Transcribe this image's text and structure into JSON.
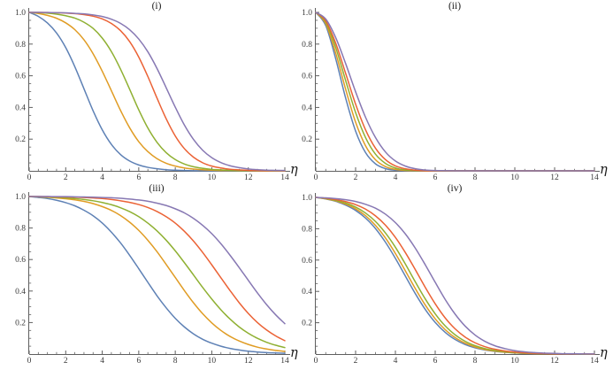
{
  "figure": {
    "background": "#ffffff",
    "axis_color": "#5f5f5f",
    "tick_label_color": "#3a3a3a"
  },
  "chart_data": [
    {
      "panel": "i",
      "type": "line",
      "title": "(i)",
      "xlabel": "η",
      "ylabel": "",
      "xlim": [
        0,
        14
      ],
      "ylim": [
        0,
        1.0
      ],
      "grid": false,
      "legend": "none",
      "x_major_ticks": [
        0,
        2,
        4,
        6,
        8,
        10,
        12,
        14
      ],
      "x_tick_labels": [
        "0",
        "2",
        "4",
        "6",
        "8",
        "10",
        "12",
        "14"
      ],
      "x_minor_step": 0.5,
      "y_major_ticks": [
        0.2,
        0.4,
        0.6,
        0.8,
        1.0
      ],
      "y_tick_labels": [
        "0.2",
        "0.4",
        "0.6",
        "0.8",
        "1.0"
      ],
      "y_minor_step": 0.05,
      "x": [
        0,
        0.5,
        1,
        1.5,
        2,
        2.5,
        3,
        3.5,
        4,
        4.5,
        5,
        5.5,
        6,
        6.5,
        7,
        7.5,
        8,
        8.5,
        9,
        9.5,
        10,
        10.5,
        11,
        11.5,
        12,
        12.5,
        13,
        13.5,
        14
      ],
      "series": [
        {
          "name": "blue",
          "color": "#5e81b5",
          "y": [
            1,
            0.975,
            0.933,
            0.87,
            0.778,
            0.657,
            0.518,
            0.379,
            0.259,
            0.167,
            0.103,
            0.062,
            0.037,
            0.022,
            0.013,
            0.007,
            0.004,
            0.002,
            0.001,
            0.001,
            0,
            0,
            0,
            0,
            0,
            0,
            0,
            0,
            0
          ]
        },
        {
          "name": "orange",
          "color": "#e09c24",
          "y": [
            1,
            0.993,
            0.981,
            0.963,
            0.934,
            0.891,
            0.827,
            0.739,
            0.629,
            0.506,
            0.382,
            0.272,
            0.184,
            0.121,
            0.077,
            0.048,
            0.03,
            0.018,
            0.011,
            0.007,
            0.004,
            0.002,
            0.002,
            0.001,
            0.001,
            0,
            0,
            0,
            0
          ]
        },
        {
          "name": "green",
          "color": "#8fb032",
          "y": [
            1,
            0.998,
            0.995,
            0.989,
            0.979,
            0.964,
            0.938,
            0.899,
            0.838,
            0.753,
            0.642,
            0.515,
            0.385,
            0.27,
            0.18,
            0.115,
            0.071,
            0.043,
            0.026,
            0.016,
            0.009,
            0.006,
            0.003,
            0.002,
            0.001,
            0.001,
            0,
            0,
            0
          ]
        },
        {
          "name": "red",
          "color": "#eb6235",
          "y": [
            1,
            1,
            0.999,
            0.998,
            0.996,
            0.992,
            0.986,
            0.976,
            0.959,
            0.93,
            0.885,
            0.816,
            0.718,
            0.595,
            0.459,
            0.329,
            0.22,
            0.14,
            0.086,
            0.051,
            0.03,
            0.018,
            0.01,
            0.006,
            0.003,
            0.002,
            0.001,
            0.001,
            0
          ]
        },
        {
          "name": "purple",
          "color": "#8778b3",
          "y": [
            1,
            1,
            0.999,
            0.998,
            0.997,
            0.994,
            0.991,
            0.984,
            0.974,
            0.957,
            0.931,
            0.891,
            0.832,
            0.751,
            0.646,
            0.525,
            0.402,
            0.289,
            0.198,
            0.13,
            0.083,
            0.052,
            0.032,
            0.02,
            0.012,
            0.007,
            0.004,
            0.003,
            0.002
          ]
        }
      ]
    },
    {
      "panel": "ii",
      "type": "line",
      "title": "(ii)",
      "xlabel": "η",
      "ylabel": "",
      "xlim": [
        0,
        14
      ],
      "ylim": [
        0,
        1.0
      ],
      "grid": false,
      "legend": "none",
      "x_major_ticks": [
        0,
        2,
        4,
        6,
        8,
        10,
        12,
        14
      ],
      "x_tick_labels": [
        "0",
        "2",
        "4",
        "6",
        "8",
        "10",
        "12",
        "14"
      ],
      "x_minor_step": 0.5,
      "y_major_ticks": [
        0.2,
        0.4,
        0.6,
        0.8,
        1.0
      ],
      "y_tick_labels": [
        "0.2",
        "0.4",
        "0.6",
        "0.8",
        "1.0"
      ],
      "y_minor_step": 0.05,
      "x": [
        0,
        0.5,
        1,
        1.5,
        2,
        2.5,
        3,
        3.5,
        4,
        4.5,
        5,
        5.5,
        6,
        6.5,
        7,
        7.5,
        8,
        8.5,
        9,
        9.5,
        10,
        10.5,
        11,
        11.5,
        12,
        12.5,
        13,
        13.5,
        14
      ],
      "series": [
        {
          "name": "blue",
          "color": "#5e81b5",
          "y": [
            1,
            0.917,
            0.708,
            0.459,
            0.251,
            0.115,
            0.044,
            0.014,
            0.004,
            0.001,
            0,
            0,
            0,
            0,
            0,
            0,
            0,
            0,
            0,
            0,
            0,
            0,
            0,
            0,
            0,
            0,
            0,
            0,
            0
          ]
        },
        {
          "name": "orange",
          "color": "#e09c24",
          "y": [
            1,
            0.929,
            0.744,
            0.515,
            0.307,
            0.158,
            0.07,
            0.027,
            0.009,
            0.003,
            0.001,
            0,
            0,
            0,
            0,
            0,
            0,
            0,
            0,
            0,
            0,
            0,
            0,
            0,
            0,
            0,
            0,
            0,
            0
          ]
        },
        {
          "name": "green",
          "color": "#8fb032",
          "y": [
            1,
            0.939,
            0.779,
            0.57,
            0.368,
            0.21,
            0.105,
            0.047,
            0.018,
            0.006,
            0.002,
            0.001,
            0,
            0,
            0,
            0,
            0,
            0,
            0,
            0,
            0,
            0,
            0,
            0,
            0,
            0,
            0,
            0,
            0
          ]
        },
        {
          "name": "red",
          "color": "#eb6235",
          "y": [
            1,
            0.947,
            0.806,
            0.615,
            0.421,
            0.259,
            0.143,
            0.071,
            0.031,
            0.013,
            0.004,
            0.001,
            0,
            0,
            0,
            0,
            0,
            0,
            0,
            0,
            0,
            0,
            0,
            0,
            0,
            0,
            0,
            0,
            0
          ]
        },
        {
          "name": "purple",
          "color": "#8778b3",
          "y": [
            1,
            0.958,
            0.841,
            0.677,
            0.499,
            0.338,
            0.21,
            0.119,
            0.062,
            0.03,
            0.013,
            0.005,
            0.002,
            0.001,
            0,
            0,
            0,
            0,
            0,
            0,
            0,
            0,
            0,
            0,
            0,
            0,
            0,
            0,
            0
          ]
        }
      ]
    },
    {
      "panel": "iii",
      "type": "line",
      "title": "(iii)",
      "xlabel": "η",
      "ylabel": "",
      "xlim": [
        0,
        14
      ],
      "ylim": [
        0,
        1.0
      ],
      "grid": false,
      "legend": "none",
      "x_major_ticks": [
        0,
        2,
        4,
        6,
        8,
        10,
        12,
        14
      ],
      "x_tick_labels": [
        "0",
        "2",
        "4",
        "6",
        "8",
        "10",
        "12",
        "14"
      ],
      "x_minor_step": 0.5,
      "y_major_ticks": [
        0.2,
        0.4,
        0.6,
        0.8,
        1.0
      ],
      "y_tick_labels": [
        "0.2",
        "0.4",
        "0.6",
        "0.8",
        "1.0"
      ],
      "y_minor_step": 0.05,
      "x": [
        0,
        0.5,
        1,
        1.5,
        2,
        2.5,
        3,
        3.5,
        4,
        4.5,
        5,
        5.5,
        6,
        6.5,
        7,
        7.5,
        8,
        8.5,
        9,
        9.5,
        10,
        10.5,
        11,
        11.5,
        12,
        12.5,
        13,
        13.5,
        14
      ],
      "series": [
        {
          "name": "blue",
          "color": "#5e81b5",
          "y": [
            1,
            0.994,
            0.987,
            0.976,
            0.961,
            0.941,
            0.913,
            0.878,
            0.832,
            0.774,
            0.706,
            0.627,
            0.542,
            0.455,
            0.37,
            0.294,
            0.227,
            0.172,
            0.128,
            0.094,
            0.069,
            0.05,
            0.036,
            0.026,
            0.018,
            0.013,
            0.009,
            0.007,
            0.005
          ]
        },
        {
          "name": "orange",
          "color": "#e09c24",
          "y": [
            1,
            0.998,
            0.995,
            0.991,
            0.986,
            0.979,
            0.969,
            0.955,
            0.936,
            0.912,
            0.879,
            0.837,
            0.785,
            0.722,
            0.65,
            0.569,
            0.486,
            0.403,
            0.325,
            0.256,
            0.198,
            0.15,
            0.112,
            0.083,
            0.061,
            0.044,
            0.032,
            0.023,
            0.017
          ]
        },
        {
          "name": "green",
          "color": "#8fb032",
          "y": [
            1,
            0.999,
            0.997,
            0.995,
            0.991,
            0.987,
            0.981,
            0.973,
            0.962,
            0.948,
            0.929,
            0.904,
            0.872,
            0.831,
            0.782,
            0.723,
            0.655,
            0.58,
            0.502,
            0.423,
            0.349,
            0.281,
            0.222,
            0.172,
            0.132,
            0.1,
            0.075,
            0.056,
            0.041
          ]
        },
        {
          "name": "red",
          "color": "#eb6235",
          "y": [
            1,
            1,
            0.999,
            0.998,
            0.997,
            0.996,
            0.994,
            0.991,
            0.987,
            0.981,
            0.973,
            0.963,
            0.949,
            0.93,
            0.905,
            0.872,
            0.831,
            0.779,
            0.717,
            0.645,
            0.566,
            0.484,
            0.403,
            0.326,
            0.258,
            0.2,
            0.153,
            0.115,
            0.085
          ]
        },
        {
          "name": "purple",
          "color": "#8778b3",
          "y": [
            1,
            1,
            1,
            0.999,
            0.999,
            0.998,
            0.997,
            0.996,
            0.994,
            0.992,
            0.989,
            0.984,
            0.978,
            0.97,
            0.958,
            0.943,
            0.922,
            0.896,
            0.861,
            0.817,
            0.764,
            0.7,
            0.627,
            0.549,
            0.468,
            0.388,
            0.314,
            0.249,
            0.193
          ]
        }
      ]
    },
    {
      "panel": "iv",
      "type": "line",
      "title": "(iv)",
      "xlabel": "η",
      "ylabel": "",
      "xlim": [
        0,
        14
      ],
      "ylim": [
        0,
        1.0
      ],
      "grid": false,
      "legend": "none",
      "x_major_ticks": [
        0,
        2,
        4,
        6,
        8,
        10,
        12,
        14
      ],
      "x_tick_labels": [
        "0",
        "2",
        "4",
        "6",
        "8",
        "10",
        "12",
        "14"
      ],
      "x_minor_step": 0.5,
      "y_major_ticks": [
        0.2,
        0.4,
        0.6,
        0.8,
        1.0
      ],
      "y_tick_labels": [
        "0.2",
        "0.4",
        "0.6",
        "0.8",
        "1.0"
      ],
      "y_minor_step": 0.05,
      "x": [
        0,
        0.5,
        1,
        1.5,
        2,
        2.5,
        3,
        3.5,
        4,
        4.5,
        5,
        5.5,
        6,
        6.5,
        7,
        7.5,
        8,
        8.5,
        9,
        9.5,
        10,
        10.5,
        11,
        11.5,
        12,
        12.5,
        13,
        13.5,
        14
      ],
      "series": [
        {
          "name": "blue",
          "color": "#5e81b5",
          "y": [
            1,
            0.99,
            0.975,
            0.951,
            0.917,
            0.868,
            0.801,
            0.714,
            0.611,
            0.498,
            0.386,
            0.285,
            0.202,
            0.139,
            0.093,
            0.061,
            0.04,
            0.026,
            0.017,
            0.011,
            0.007,
            0.004,
            0.003,
            0.002,
            0.001,
            0.001,
            0,
            0,
            0
          ]
        },
        {
          "name": "orange",
          "color": "#e09c24",
          "y": [
            1,
            0.991,
            0.978,
            0.957,
            0.927,
            0.883,
            0.821,
            0.741,
            0.642,
            0.531,
            0.418,
            0.313,
            0.225,
            0.156,
            0.105,
            0.07,
            0.046,
            0.029,
            0.019,
            0.012,
            0.008,
            0.005,
            0.003,
            0.002,
            0.001,
            0.001,
            0.001,
            0,
            0
          ]
        },
        {
          "name": "green",
          "color": "#8fb032",
          "y": [
            1,
            0.993,
            0.981,
            0.964,
            0.938,
            0.9,
            0.846,
            0.773,
            0.682,
            0.575,
            0.461,
            0.352,
            0.257,
            0.18,
            0.123,
            0.082,
            0.054,
            0.035,
            0.023,
            0.015,
            0.009,
            0.006,
            0.004,
            0.002,
            0.002,
            0.001,
            0.001,
            0,
            0
          ]
        },
        {
          "name": "red",
          "color": "#eb6235",
          "y": [
            1,
            0.995,
            0.986,
            0.973,
            0.954,
            0.925,
            0.882,
            0.823,
            0.745,
            0.648,
            0.539,
            0.426,
            0.321,
            0.231,
            0.161,
            0.109,
            0.072,
            0.047,
            0.031,
            0.02,
            0.013,
            0.008,
            0.005,
            0.003,
            0.002,
            0.001,
            0.001,
            0.001,
            0
          ]
        },
        {
          "name": "purple",
          "color": "#8778b3",
          "y": [
            1,
            0.997,
            0.992,
            0.985,
            0.974,
            0.956,
            0.931,
            0.893,
            0.839,
            0.767,
            0.676,
            0.57,
            0.458,
            0.349,
            0.255,
            0.179,
            0.122,
            0.081,
            0.053,
            0.035,
            0.022,
            0.014,
            0.009,
            0.006,
            0.004,
            0.002,
            0.002,
            0.001,
            0.001
          ]
        }
      ]
    }
  ]
}
